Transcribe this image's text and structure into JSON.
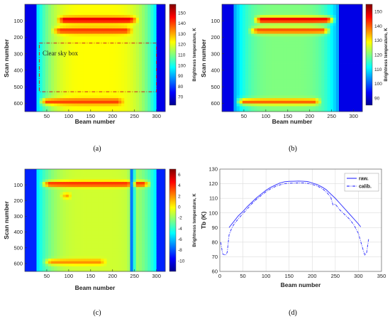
{
  "figure": {
    "panels": [
      "(a)",
      "(b)",
      "(c)",
      "(d)"
    ],
    "annotation_text": "Clear sky box"
  },
  "chart_data": [
    {
      "type": "heatmap",
      "panel": "(a)",
      "xlabel": "Beam number",
      "ylabel": "Scan number",
      "xticks": [
        50,
        100,
        150,
        200,
        250,
        300
      ],
      "yticks": [
        100,
        200,
        300,
        400,
        500,
        600
      ],
      "xlim": [
        0,
        320
      ],
      "ylim": [
        0,
        650
      ],
      "colorbar": {
        "label": "Brightness temperature, K",
        "ticks": [
          70,
          80,
          90,
          100,
          110,
          120,
          130,
          140,
          150
        ],
        "range": [
          62,
          158
        ]
      },
      "field": {
        "limb_beams": [
          28,
          300
        ],
        "limb_value": 72,
        "center_value": 122,
        "hot_bands": [
          {
            "scan": 95,
            "beam_from": 70,
            "beam_to": 260,
            "value": 150
          },
          {
            "scan": 160,
            "beam_from": 60,
            "beam_to": 250,
            "value": 142
          },
          {
            "scan": 590,
            "beam_from": 30,
            "beam_to": 230,
            "value": 140
          }
        ]
      },
      "box": {
        "beam_from": 33,
        "beam_to": 300,
        "scan_from": 235,
        "scan_to": 530
      }
    },
    {
      "type": "heatmap",
      "panel": "(b)",
      "xlabel": "Beam number",
      "ylabel": "Scan number",
      "xticks": [
        50,
        100,
        150,
        200,
        250,
        300
      ],
      "yticks": [
        100,
        200,
        300,
        400,
        500,
        600
      ],
      "xlim": [
        0,
        320
      ],
      "ylim": [
        0,
        650
      ],
      "colorbar": {
        "label": "Brightness temperature, K",
        "ticks": [
          90,
          100,
          110,
          120,
          130,
          140,
          150
        ],
        "range": [
          85,
          155
        ]
      },
      "field": {
        "limb_beams": [
          28,
          265
        ],
        "limb_value": 92,
        "center_value": 120,
        "hot_bands": [
          {
            "scan": 95,
            "beam_from": 70,
            "beam_to": 260,
            "value": 150
          },
          {
            "scan": 160,
            "beam_from": 60,
            "beam_to": 250,
            "value": 142
          },
          {
            "scan": 590,
            "beam_from": 30,
            "beam_to": 230,
            "value": 140
          }
        ]
      }
    },
    {
      "type": "heatmap",
      "panel": "(c)",
      "xlabel": "Beam number",
      "ylabel": "Scan number",
      "xticks": [
        50,
        100,
        150,
        200,
        250,
        300
      ],
      "yticks": [
        100,
        200,
        300,
        400,
        500,
        600
      ],
      "xlim": [
        0,
        320
      ],
      "ylim": [
        0,
        650
      ],
      "colorbar": {
        "label": "Brightness temperature, K",
        "ticks": [
          6,
          4,
          2,
          0,
          -2,
          -4,
          -6,
          -8,
          -10
        ],
        "range": [
          -12,
          7
        ]
      },
      "field": {
        "limb_beams": [
          28,
          300
        ],
        "limb_value": -9,
        "center_value": -1,
        "hot_bands": [
          {
            "scan": 95,
            "beam_from": 35,
            "beam_to": 290,
            "value": 4
          },
          {
            "scan": 170,
            "beam_from": 80,
            "beam_to": 110,
            "value": 3
          },
          {
            "scan": 590,
            "beam_from": 40,
            "beam_to": 190,
            "value": 2
          }
        ],
        "stripes": [
          {
            "beam": 245,
            "value": -8
          }
        ]
      }
    },
    {
      "type": "line",
      "panel": "(d)",
      "xlabel": "Beam number",
      "ylabel": "Tb (K)",
      "xlim": [
        0,
        350
      ],
      "ylim": [
        60,
        130
      ],
      "xticks": [
        0,
        50,
        100,
        150,
        200,
        250,
        300,
        350
      ],
      "yticks": [
        60,
        70,
        80,
        90,
        100,
        110,
        120,
        130
      ],
      "grid": true,
      "legend": "top-right",
      "series": [
        {
          "name": "raw.",
          "style": "solid",
          "color": "#3b3bff",
          "x": [
            20,
            30,
            40,
            50,
            60,
            70,
            80,
            90,
            100,
            110,
            120,
            130,
            140,
            150,
            160,
            170,
            180,
            190,
            200,
            210,
            220,
            230,
            240,
            250,
            260,
            270,
            280,
            290,
            300,
            305
          ],
          "y": [
            90,
            94,
            98,
            101,
            104.5,
            107.5,
            110.5,
            113,
            115.5,
            117.5,
            119,
            120.5,
            121.3,
            121.6,
            121.7,
            121.8,
            121.7,
            121.5,
            120.5,
            119.5,
            118,
            116,
            113,
            110,
            106.5,
            103,
            99.5,
            96,
            92.5,
            90.5
          ]
        },
        {
          "name": "calib.",
          "style": "dashdot",
          "color": "#3b3bff",
          "x": [
            2,
            6,
            12,
            16,
            20,
            25,
            30,
            40,
            50,
            60,
            70,
            80,
            90,
            100,
            110,
            120,
            130,
            140,
            150,
            160,
            170,
            180,
            190,
            200,
            210,
            220,
            230,
            240,
            245,
            250,
            255,
            260,
            270,
            280,
            290,
            300,
            310,
            314,
            318,
            322
          ],
          "y": [
            80,
            72,
            71,
            73,
            85,
            89,
            92,
            96,
            99.5,
            103,
            106.5,
            109.5,
            112,
            114.5,
            116.5,
            118,
            119.2,
            120,
            120.3,
            120.4,
            120.5,
            120.5,
            120.2,
            119.5,
            118.5,
            117,
            114.5,
            111,
            105.5,
            106,
            104,
            102,
            99,
            96,
            92,
            86,
            75,
            71,
            73,
            82
          ]
        }
      ]
    }
  ]
}
